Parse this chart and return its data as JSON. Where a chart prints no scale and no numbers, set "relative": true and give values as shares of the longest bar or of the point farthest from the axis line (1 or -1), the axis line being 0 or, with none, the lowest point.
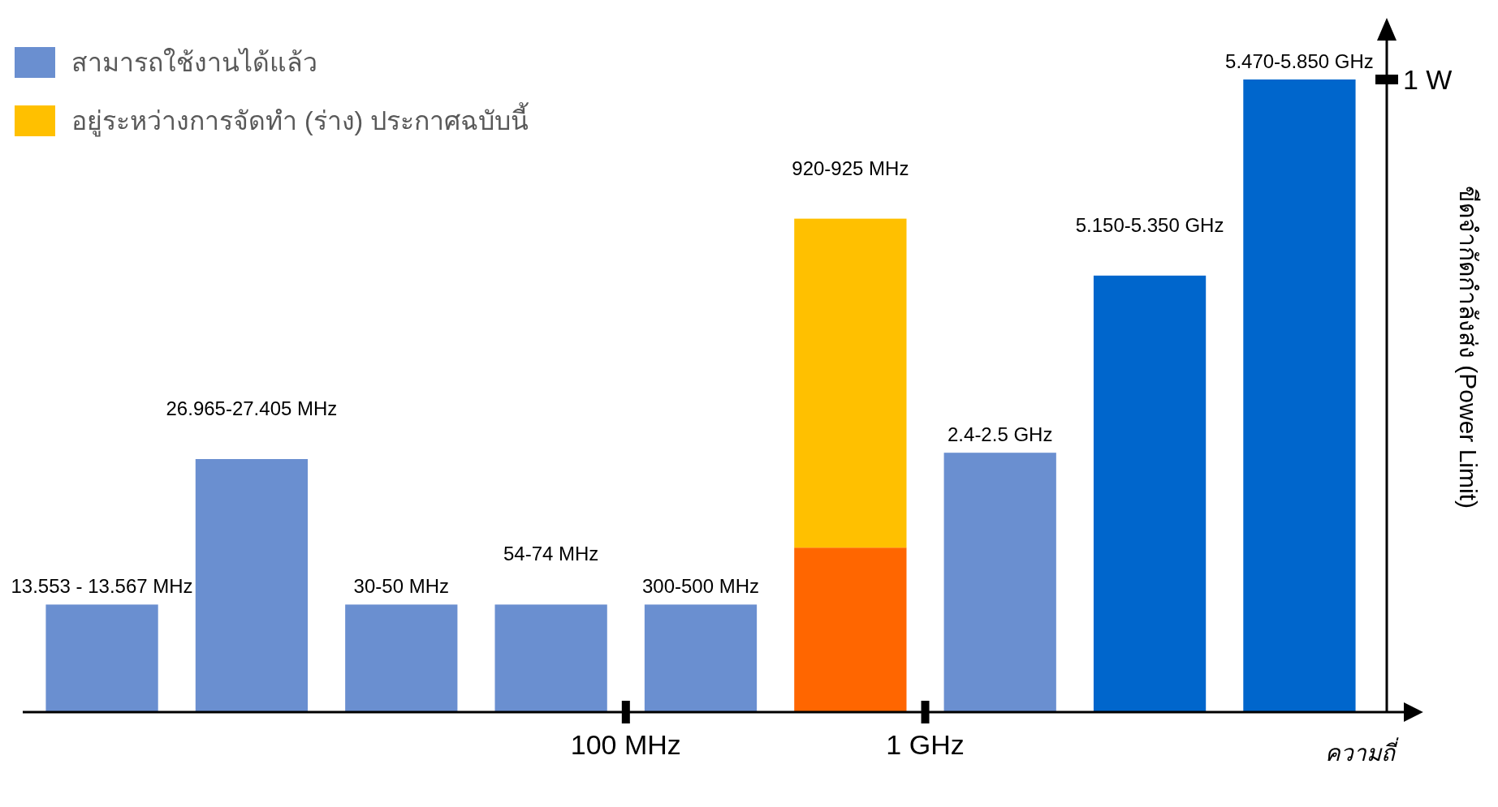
{
  "chart_data": {
    "type": "bar",
    "relative": true,
    "stacked": true,
    "xlabel": "ความถี่",
    "ylabel": "ขีดจำกัดกำลังส่ง (Power Limit)",
    "categories": [
      "13.553 - 13.567 MHz",
      "26.965-27.405 MHz",
      "30-50 MHz",
      "54-74 MHz",
      "300-500 MHz",
      "920-925 MHz",
      "2.4-2.5 GHz",
      "5.150-5.350 GHz",
      "5.470-5.850 GHz"
    ],
    "series": [
      {
        "name": "สามารถใช้งานได้แล้ว",
        "color": "#6a8fd0",
        "colors": [
          "#6a8fd0",
          "#6a8fd0",
          "#6a8fd0",
          "#6a8fd0",
          "#6a8fd0",
          "#ff6600",
          "#6a8fd0",
          "#0066cc",
          "#0066cc"
        ],
        "values": [
          0.17,
          0.4,
          0.17,
          0.17,
          0.17,
          0.26,
          0.41,
          0.69,
          1
        ]
      },
      {
        "name": "อยู่ระหว่างการจัดทำ (ร่าง) ประกาศฉบับนี้",
        "color": "#ffc000",
        "values": [
          null,
          null,
          null,
          null,
          null,
          0.52,
          null,
          null,
          null
        ]
      }
    ],
    "annotations": [
      "1 W",
      "100 MHz",
      "1 GHz"
    ],
    "legend": "top left"
  }
}
